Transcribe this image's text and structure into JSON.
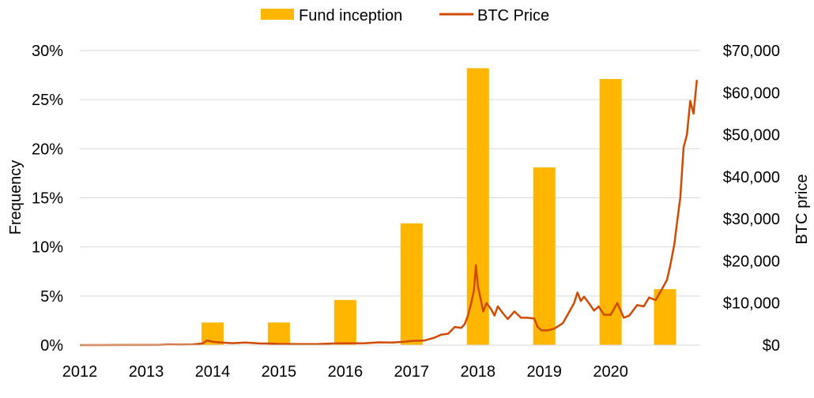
{
  "chart_data": {
    "type": "bar+line",
    "categories": [
      "2012",
      "2013",
      "2014",
      "2015",
      "2016",
      "2017",
      "2018",
      "2019",
      "2020"
    ],
    "legend": {
      "position": "top",
      "entries": [
        "Fund inception",
        "BTC Price"
      ]
    },
    "colors": {
      "bar": "#FFB600",
      "line": "#D04A02",
      "grid": "#D9D9D9"
    },
    "grid": true,
    "left_axis": {
      "label": "Frequency",
      "range": [
        0,
        0.3
      ],
      "ticks": [
        0,
        0.05,
        0.1,
        0.15,
        0.2,
        0.25,
        0.3
      ],
      "tick_labels": [
        "0%",
        "5%",
        "10%",
        "15%",
        "20%",
        "25%",
        "30%"
      ]
    },
    "right_axis": {
      "label": "BTC price",
      "range": [
        0,
        70000
      ],
      "ticks": [
        0,
        10000,
        20000,
        30000,
        40000,
        50000,
        60000,
        70000
      ],
      "tick_labels": [
        "$0",
        "$10,000",
        "$20,000",
        "$30,000",
        "$40,000",
        "$50,000",
        "$60,000",
        "$70,000"
      ]
    },
    "bar_series": {
      "name": "Fund inception",
      "points": [
        {
          "x": 2014.0,
          "value": 0.023
        },
        {
          "x": 2015.0,
          "value": 0.023
        },
        {
          "x": 2016.0,
          "value": 0.046
        },
        {
          "x": 2017.0,
          "value": 0.124
        },
        {
          "x": 2018.0,
          "value": 0.282
        },
        {
          "x": 2019.0,
          "value": 0.181
        },
        {
          "x": 2020.0,
          "value": 0.271
        },
        {
          "x": 2020.82,
          "value": 0.057
        }
      ]
    },
    "line_series": {
      "name": "BTC Price",
      "points": [
        [
          2012.0,
          5
        ],
        [
          2012.3,
          5
        ],
        [
          2012.6,
          10
        ],
        [
          2012.9,
          13
        ],
        [
          2013.2,
          50
        ],
        [
          2013.35,
          130
        ],
        [
          2013.5,
          100
        ],
        [
          2013.7,
          150
        ],
        [
          2013.85,
          400
        ],
        [
          2013.92,
          1100
        ],
        [
          2014.0,
          800
        ],
        [
          2014.1,
          650
        ],
        [
          2014.3,
          450
        ],
        [
          2014.5,
          600
        ],
        [
          2014.7,
          400
        ],
        [
          2014.9,
          350
        ],
        [
          2015.0,
          280
        ],
        [
          2015.3,
          250
        ],
        [
          2015.6,
          270
        ],
        [
          2015.85,
          400
        ],
        [
          2016.0,
          420
        ],
        [
          2016.3,
          450
        ],
        [
          2016.5,
          650
        ],
        [
          2016.7,
          620
        ],
        [
          2016.9,
          780
        ],
        [
          2017.0,
          1000
        ],
        [
          2017.2,
          1100
        ],
        [
          2017.35,
          1800
        ],
        [
          2017.45,
          2500
        ],
        [
          2017.55,
          2700
        ],
        [
          2017.65,
          4300
        ],
        [
          2017.75,
          4100
        ],
        [
          2017.8,
          5000
        ],
        [
          2017.85,
          7000
        ],
        [
          2017.9,
          10000
        ],
        [
          2017.94,
          13000
        ],
        [
          2017.97,
          19000
        ],
        [
          2018.0,
          14000
        ],
        [
          2018.04,
          11000
        ],
        [
          2018.08,
          8000
        ],
        [
          2018.13,
          10000
        ],
        [
          2018.2,
          8500
        ],
        [
          2018.25,
          7000
        ],
        [
          2018.3,
          9200
        ],
        [
          2018.38,
          7500
        ],
        [
          2018.45,
          6200
        ],
        [
          2018.55,
          8000
        ],
        [
          2018.65,
          6500
        ],
        [
          2018.75,
          6500
        ],
        [
          2018.85,
          6300
        ],
        [
          2018.9,
          4300
        ],
        [
          2018.96,
          3500
        ],
        [
          2019.05,
          3500
        ],
        [
          2019.15,
          3900
        ],
        [
          2019.28,
          5200
        ],
        [
          2019.38,
          8000
        ],
        [
          2019.45,
          10000
        ],
        [
          2019.5,
          12500
        ],
        [
          2019.55,
          10500
        ],
        [
          2019.6,
          11500
        ],
        [
          2019.68,
          9800
        ],
        [
          2019.75,
          8200
        ],
        [
          2019.82,
          9200
        ],
        [
          2019.9,
          7200
        ],
        [
          2020.0,
          7200
        ],
        [
          2020.1,
          10000
        ],
        [
          2020.2,
          6500
        ],
        [
          2020.28,
          7000
        ],
        [
          2020.4,
          9500
        ],
        [
          2020.5,
          9200
        ],
        [
          2020.58,
          11300
        ],
        [
          2020.68,
          10700
        ],
        [
          2020.78,
          13500
        ],
        [
          2020.85,
          15500
        ],
        [
          2020.9,
          19000
        ],
        [
          2020.96,
          24000
        ],
        [
          2021.0,
          29000
        ],
        [
          2021.05,
          35000
        ],
        [
          2021.1,
          47000
        ],
        [
          2021.15,
          50000
        ],
        [
          2021.2,
          58000
        ],
        [
          2021.25,
          55000
        ],
        [
          2021.3,
          63000
        ]
      ]
    }
  }
}
